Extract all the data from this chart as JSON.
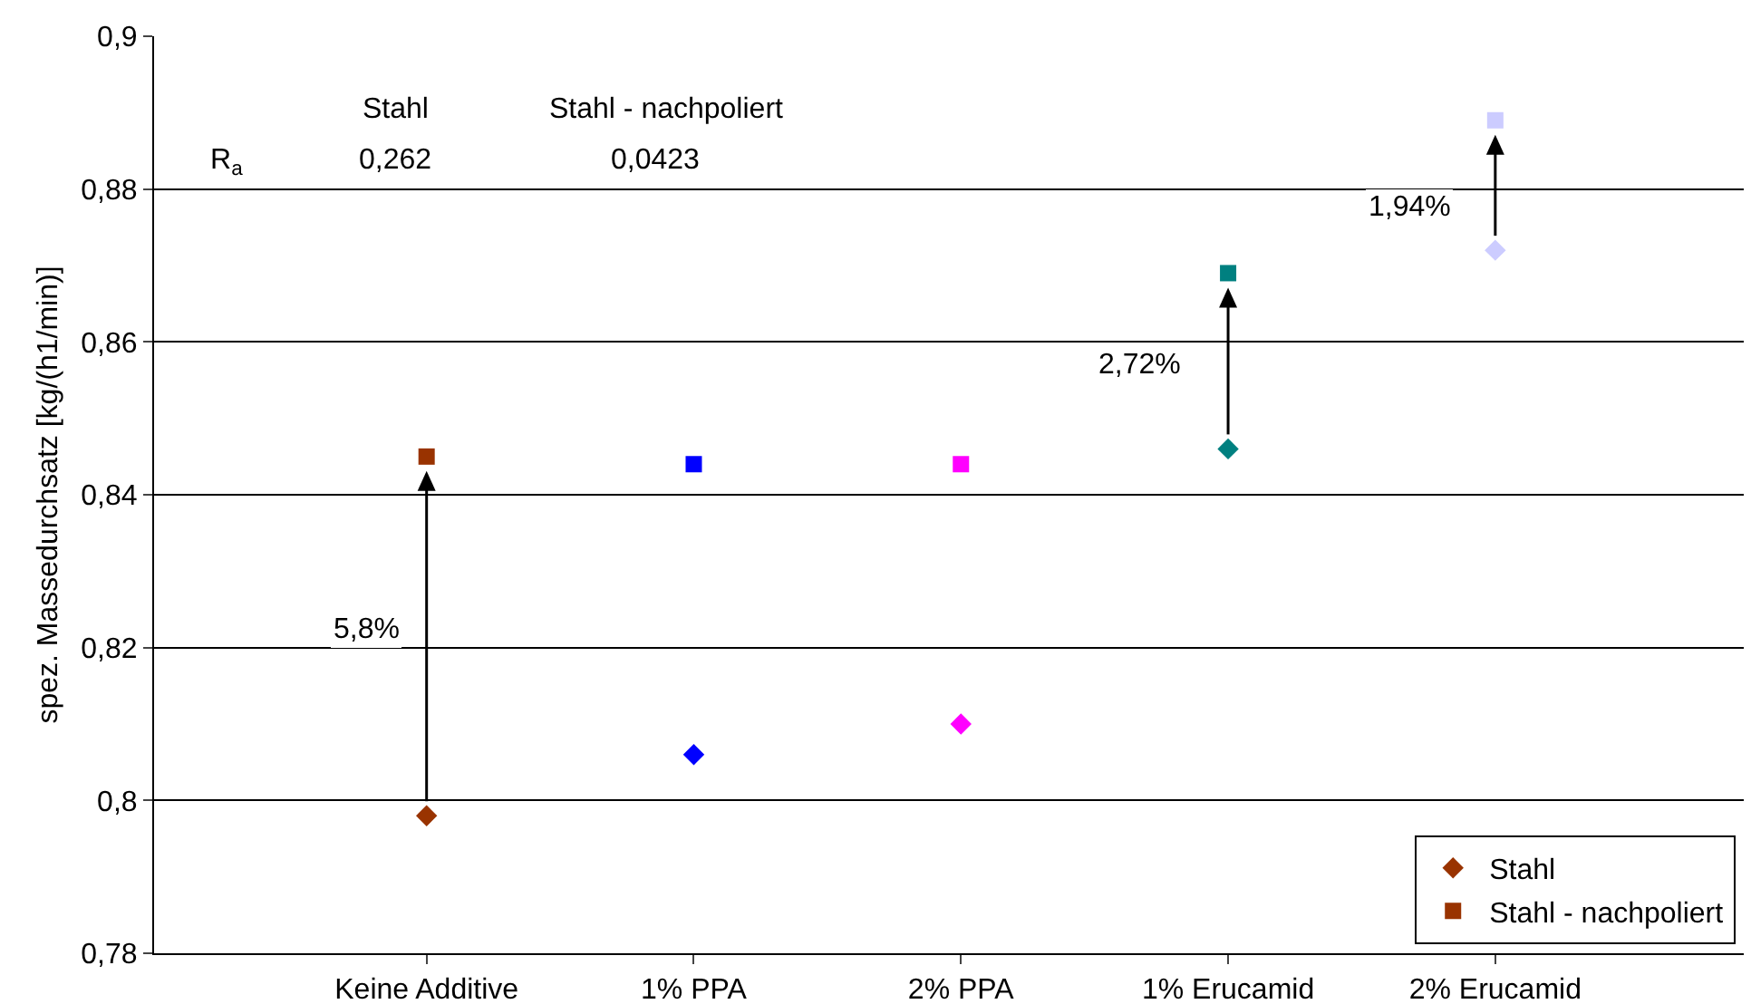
{
  "chart_data": {
    "type": "scatter",
    "ylabel": "spez. Massedurchsatz [kg/(h1/min)]",
    "categories": [
      "Keine Additive",
      "1% PPA",
      "2% PPA",
      "1% Erucamid",
      "2% Erucamid"
    ],
    "series": [
      {
        "name": "Stahl",
        "color": "#993300",
        "marker": "diamond",
        "colors": [
          "#993300",
          "#0000ff",
          "#ff00ff",
          "#008080",
          "#ccccff"
        ],
        "values": [
          0.798,
          0.806,
          0.81,
          0.846,
          0.872
        ]
      },
      {
        "name": "Stahl - nachpoliert",
        "color": "#993300",
        "marker": "square",
        "colors": [
          "#993300",
          "#0000ff",
          "#ff00ff",
          "#008080",
          "#ccccff"
        ],
        "values": [
          0.845,
          0.844,
          0.844,
          0.869,
          0.889
        ]
      }
    ],
    "ylim": [
      0.78,
      0.9
    ],
    "yticks": [
      {
        "value": 0.78,
        "label": "0,78"
      },
      {
        "value": 0.8,
        "label": "0,8"
      },
      {
        "value": 0.82,
        "label": "0,82"
      },
      {
        "value": 0.84,
        "label": "0,84"
      },
      {
        "value": 0.86,
        "label": "0,86"
      },
      {
        "value": 0.88,
        "label": "0,88"
      },
      {
        "value": 0.9,
        "label": "0,9"
      }
    ],
    "grid": "y",
    "legend": "bottom right",
    "annotations": [
      "Stahl",
      "Stahl - nachpoliert",
      "R$_{a}$",
      "0,262",
      "0,0423",
      "5,8%",
      "2,72%",
      "1,94%"
    ]
  }
}
